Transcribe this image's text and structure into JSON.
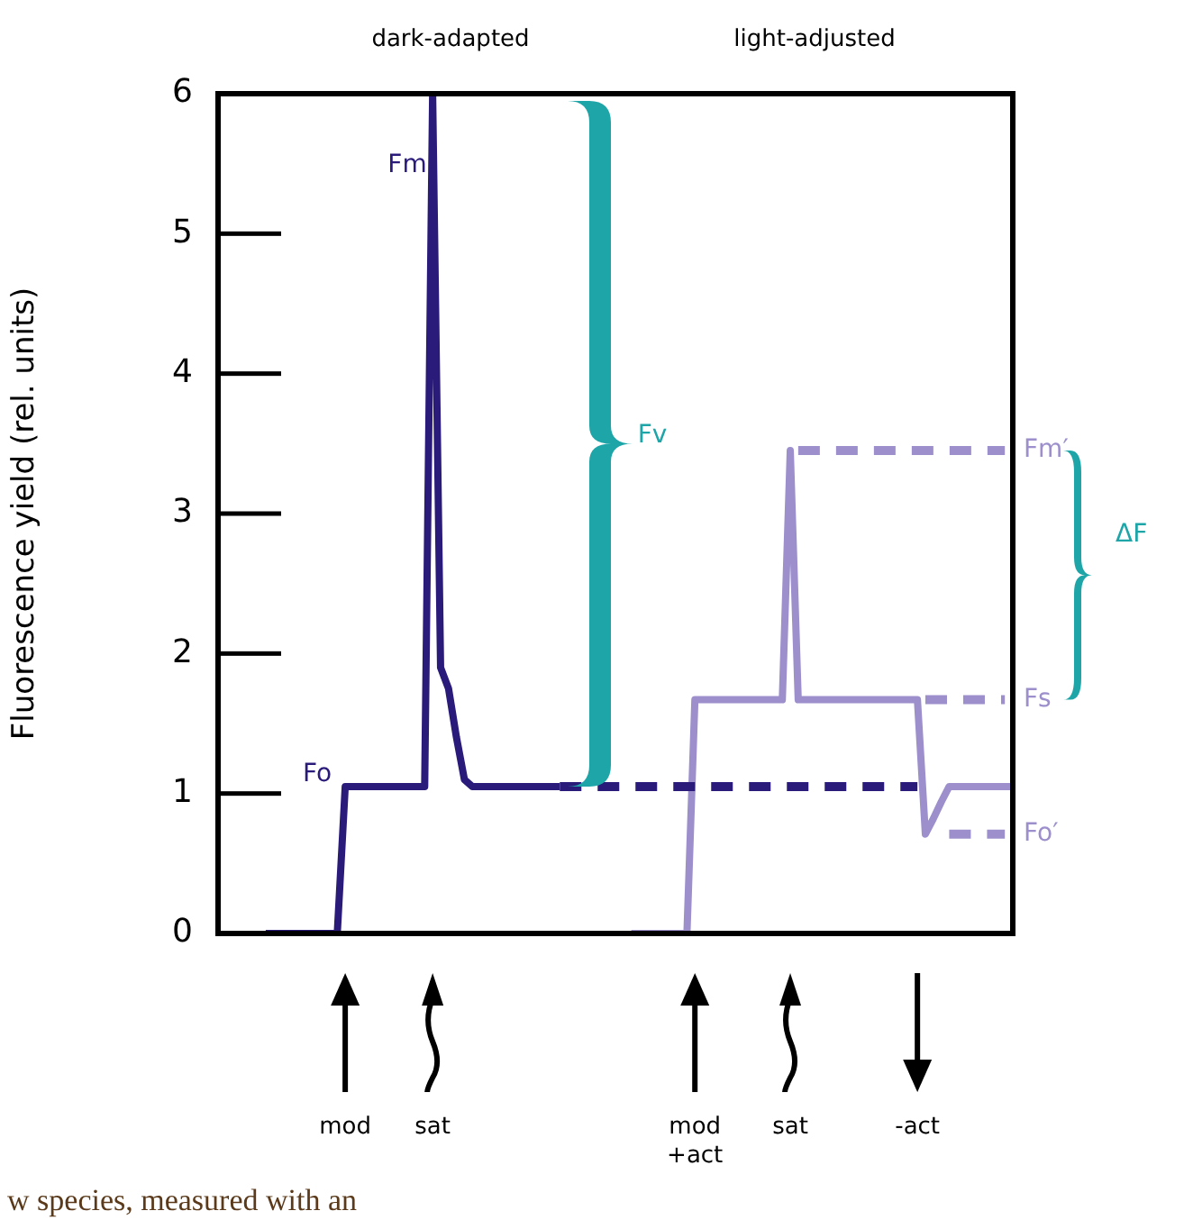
{
  "chart_data": {
    "type": "line",
    "ylabel": "Fluorescence yield (rel. units)",
    "ylim": [
      0,
      6
    ],
    "yticks": [
      0,
      1,
      2,
      3,
      4,
      5,
      6
    ],
    "categories": [
      null,
      null,
      null,
      null,
      null,
      null,
      null,
      null,
      null,
      null,
      null,
      null,
      null,
      null,
      null,
      null,
      "mod",
      null,
      null,
      null,
      null,
      null,
      null,
      null,
      null,
      null,
      null,
      "sat",
      null,
      null,
      null,
      null,
      null,
      null,
      null,
      null,
      null,
      null,
      null,
      null,
      null,
      null,
      null,
      null,
      null,
      null,
      null,
      null,
      null,
      null,
      null,
      null,
      null,
      null,
      null,
      null,
      null,
      null,
      null,
      null,
      "mod +act",
      null,
      null,
      null,
      null,
      null,
      null,
      null,
      null,
      null,
      null,
      null,
      "sat",
      null,
      null,
      null,
      null,
      null,
      null,
      null,
      null,
      null,
      null,
      null,
      null,
      null,
      null,
      null,
      "-act",
      null,
      null,
      null,
      null,
      null,
      null,
      null,
      null,
      null,
      null,
      null,
      null
    ],
    "grid": false,
    "legend": false,
    "marker": "none",
    "series": [
      {
        "color": "#2a1a7a",
        "line_style": "solid",
        "values": [
          null,
          null,
          null,
          null,
          null,
          null,
          0,
          0,
          0,
          0,
          0,
          0,
          0,
          0,
          0,
          0,
          1.05,
          1.05,
          1.05,
          1.05,
          1.05,
          1.05,
          1.05,
          1.05,
          1.05,
          1.05,
          1.05,
          6,
          1.9,
          1.75,
          1.4,
          1.1,
          1.05,
          1.05,
          1.05,
          1.05,
          1.05,
          1.05,
          1.05,
          1.05,
          1.05,
          1.05,
          1.05,
          1.05,
          null,
          null,
          null,
          null,
          null,
          null,
          null,
          null,
          null,
          null,
          null,
          null,
          null,
          null,
          null,
          null,
          null,
          null,
          null,
          null,
          null,
          null,
          null,
          null,
          null,
          null,
          null,
          null,
          null,
          null,
          null,
          null,
          null,
          null,
          null,
          null,
          null,
          null,
          null,
          null,
          null,
          null,
          null,
          null,
          null,
          null,
          null,
          null,
          null,
          null,
          null,
          null,
          null,
          null,
          null,
          null,
          null
        ]
      },
      {
        "color": "#2a1a7a",
        "line_style": "dashed",
        "values": [
          null,
          null,
          null,
          null,
          null,
          null,
          null,
          null,
          null,
          null,
          null,
          null,
          null,
          null,
          null,
          null,
          null,
          null,
          null,
          null,
          null,
          null,
          null,
          null,
          null,
          null,
          null,
          null,
          null,
          null,
          null,
          null,
          null,
          null,
          null,
          null,
          null,
          null,
          null,
          null,
          null,
          null,
          null,
          1.05,
          1.05,
          1.05,
          1.05,
          1.05,
          1.05,
          1.05,
          1.05,
          1.05,
          1.05,
          1.05,
          1.05,
          1.05,
          1.05,
          1.05,
          1.05,
          1.05,
          1.05,
          1.05,
          1.05,
          1.05,
          1.05,
          1.05,
          1.05,
          1.05,
          1.05,
          1.05,
          1.05,
          1.05,
          1.05,
          1.05,
          1.05,
          1.05,
          1.05,
          1.05,
          1.05,
          1.05,
          1.05,
          1.05,
          1.05,
          1.05,
          1.05,
          1.05,
          1.05,
          1.05,
          1.05,
          null,
          null,
          null,
          null,
          null,
          null,
          null,
          null,
          null,
          null,
          null,
          null
        ]
      },
      {
        "color": "#9c8fcc",
        "line_style": "solid",
        "values": [
          null,
          null,
          null,
          null,
          null,
          null,
          null,
          null,
          null,
          null,
          null,
          null,
          null,
          null,
          null,
          null,
          null,
          null,
          null,
          null,
          null,
          null,
          null,
          null,
          null,
          null,
          null,
          null,
          null,
          null,
          null,
          null,
          null,
          null,
          null,
          null,
          null,
          null,
          null,
          null,
          null,
          null,
          null,
          null,
          null,
          null,
          null,
          null,
          null,
          null,
          null,
          null,
          0,
          0,
          0,
          0,
          0,
          0,
          0,
          0,
          1.67,
          1.67,
          1.67,
          1.67,
          1.67,
          1.67,
          1.67,
          1.67,
          1.67,
          1.67,
          1.67,
          1.67,
          3.45,
          1.67,
          1.67,
          1.67,
          1.67,
          1.67,
          1.67,
          1.67,
          1.67,
          1.67,
          1.67,
          1.67,
          1.67,
          1.67,
          1.67,
          1.67,
          1.67,
          0.71,
          0.82,
          0.94,
          1.05,
          1.05,
          1.05,
          1.05,
          1.05,
          1.05,
          1.05,
          1.05,
          1.05
        ]
      },
      {
        "color": "#9c8fcc",
        "line_style": "dashed",
        "values": [
          null,
          null,
          null,
          null,
          null,
          null,
          null,
          null,
          null,
          null,
          null,
          null,
          null,
          null,
          null,
          null,
          null,
          null,
          null,
          null,
          null,
          null,
          null,
          null,
          null,
          null,
          null,
          null,
          null,
          null,
          null,
          null,
          null,
          null,
          null,
          null,
          null,
          null,
          null,
          null,
          null,
          null,
          null,
          null,
          null,
          null,
          null,
          null,
          null,
          null,
          null,
          null,
          null,
          null,
          null,
          null,
          null,
          null,
          null,
          null,
          null,
          null,
          null,
          null,
          null,
          null,
          null,
          null,
          null,
          null,
          null,
          null,
          null,
          3.45,
          3.45,
          3.45,
          3.45,
          3.45,
          3.45,
          3.45,
          3.45,
          3.45,
          3.45,
          3.45,
          3.45,
          3.45,
          3.45,
          3.45,
          3.45,
          3.45,
          3.45,
          3.45,
          3.45,
          3.45,
          3.45,
          3.45,
          3.45,
          3.45,
          3.45,
          3.45,
          null
        ]
      },
      {
        "color": "#9c8fcc",
        "line_style": "dashed",
        "values": [
          null,
          null,
          null,
          null,
          null,
          null,
          null,
          null,
          null,
          null,
          null,
          null,
          null,
          null,
          null,
          null,
          null,
          null,
          null,
          null,
          null,
          null,
          null,
          null,
          null,
          null,
          null,
          null,
          null,
          null,
          null,
          null,
          null,
          null,
          null,
          null,
          null,
          null,
          null,
          null,
          null,
          null,
          null,
          null,
          null,
          null,
          null,
          null,
          null,
          null,
          null,
          null,
          null,
          null,
          null,
          null,
          null,
          null,
          null,
          null,
          null,
          null,
          null,
          null,
          null,
          null,
          null,
          null,
          null,
          null,
          null,
          null,
          null,
          null,
          null,
          null,
          null,
          null,
          null,
          null,
          null,
          null,
          null,
          null,
          null,
          null,
          null,
          null,
          null,
          1.67,
          1.67,
          1.67,
          1.67,
          1.67,
          1.67,
          1.67,
          1.67,
          1.67,
          1.67,
          1.67,
          null
        ]
      },
      {
        "color": "#9c8fcc",
        "line_style": "dashed",
        "values": [
          null,
          null,
          null,
          null,
          null,
          null,
          null,
          null,
          null,
          null,
          null,
          null,
          null,
          null,
          null,
          null,
          null,
          null,
          null,
          null,
          null,
          null,
          null,
          null,
          null,
          null,
          null,
          null,
          null,
          null,
          null,
          null,
          null,
          null,
          null,
          null,
          null,
          null,
          null,
          null,
          null,
          null,
          null,
          null,
          null,
          null,
          null,
          null,
          null,
          null,
          null,
          null,
          null,
          null,
          null,
          null,
          null,
          null,
          null,
          null,
          null,
          null,
          null,
          null,
          null,
          null,
          null,
          null,
          null,
          null,
          null,
          null,
          null,
          null,
          null,
          null,
          null,
          null,
          null,
          null,
          null,
          null,
          null,
          null,
          null,
          null,
          null,
          null,
          null,
          null,
          null,
          null,
          0.71,
          0.71,
          0.71,
          0.71,
          0.71,
          0.71,
          0.71,
          0.71,
          null
        ]
      }
    ],
    "annotations": [
      "dark-adapted",
      "light-adjusted",
      "Fm",
      "Fo",
      "Fv",
      "Fm′",
      "Fs",
      "Fo′",
      "ΔF",
      "w species, measured with an"
    ]
  }
}
